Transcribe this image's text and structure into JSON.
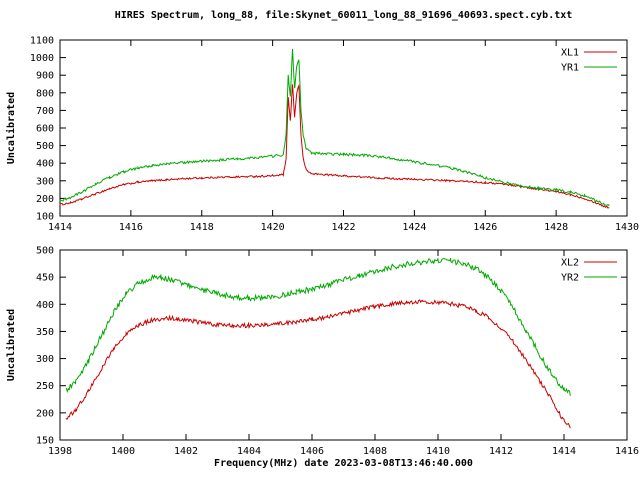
{
  "header": {
    "title": "HIRES Spectrum, long_88, file:Skynet_60011_long_88_91696_40693.spect.cyb.txt"
  },
  "colors": {
    "red": "#cc0000",
    "green": "#00aa00",
    "axis": "#000000"
  },
  "chart_data": [
    {
      "type": "line",
      "ylabel": "Uncalibrated",
      "xlim": [
        1414,
        1430
      ],
      "ylim": [
        100,
        1100
      ],
      "xticks": [
        1414,
        1416,
        1418,
        1420,
        1422,
        1424,
        1426,
        1428,
        1430
      ],
      "yticks": [
        100,
        200,
        300,
        400,
        500,
        600,
        700,
        800,
        900,
        1000,
        1100
      ],
      "grid": false,
      "legend_position": "top-right",
      "series": [
        {
          "name": "XL1",
          "color": "#cc0000",
          "noise": 5,
          "points": [
            [
              1414.0,
              165
            ],
            [
              1414.3,
              175
            ],
            [
              1414.6,
              195
            ],
            [
              1415.0,
              225
            ],
            [
              1415.4,
              255
            ],
            [
              1415.8,
              278
            ],
            [
              1416.2,
              292
            ],
            [
              1416.6,
              300
            ],
            [
              1417.0,
              306
            ],
            [
              1417.5,
              312
            ],
            [
              1418.0,
              316
            ],
            [
              1418.5,
              320
            ],
            [
              1419.0,
              322
            ],
            [
              1419.5,
              325
            ],
            [
              1420.0,
              328
            ],
            [
              1420.3,
              335
            ],
            [
              1420.38,
              420
            ],
            [
              1420.44,
              780
            ],
            [
              1420.5,
              640
            ],
            [
              1420.56,
              850
            ],
            [
              1420.62,
              660
            ],
            [
              1420.68,
              800
            ],
            [
              1420.74,
              840
            ],
            [
              1420.8,
              560
            ],
            [
              1420.86,
              430
            ],
            [
              1420.95,
              360
            ],
            [
              1421.1,
              340
            ],
            [
              1421.5,
              335
            ],
            [
              1422.0,
              328
            ],
            [
              1422.5,
              322
            ],
            [
              1423.0,
              316
            ],
            [
              1423.5,
              312
            ],
            [
              1424.0,
              308
            ],
            [
              1424.5,
              305
            ],
            [
              1425.0,
              300
            ],
            [
              1425.5,
              296
            ],
            [
              1426.0,
              290
            ],
            [
              1426.5,
              282
            ],
            [
              1427.0,
              268
            ],
            [
              1427.5,
              252
            ],
            [
              1428.0,
              238
            ],
            [
              1428.4,
              222
            ],
            [
              1428.8,
              200
            ],
            [
              1429.1,
              178
            ],
            [
              1429.35,
              155
            ],
            [
              1429.5,
              148
            ]
          ]
        },
        {
          "name": "YR1",
          "color": "#00aa00",
          "noise": 7,
          "points": [
            [
              1414.0,
              185
            ],
            [
              1414.3,
              205
            ],
            [
              1414.6,
              235
            ],
            [
              1415.0,
              280
            ],
            [
              1415.4,
              320
            ],
            [
              1415.8,
              352
            ],
            [
              1416.2,
              372
            ],
            [
              1416.6,
              386
            ],
            [
              1417.0,
              396
            ],
            [
              1417.5,
              404
            ],
            [
              1418.0,
              412
            ],
            [
              1418.5,
              418
            ],
            [
              1419.0,
              424
            ],
            [
              1419.5,
              432
            ],
            [
              1420.0,
              440
            ],
            [
              1420.3,
              448
            ],
            [
              1420.38,
              560
            ],
            [
              1420.44,
              900
            ],
            [
              1420.5,
              780
            ],
            [
              1420.56,
              1050
            ],
            [
              1420.62,
              820
            ],
            [
              1420.68,
              950
            ],
            [
              1420.74,
              990
            ],
            [
              1420.8,
              700
            ],
            [
              1420.86,
              560
            ],
            [
              1420.95,
              480
            ],
            [
              1421.1,
              458
            ],
            [
              1421.5,
              452
            ],
            [
              1422.0,
              450
            ],
            [
              1422.5,
              446
            ],
            [
              1423.0,
              438
            ],
            [
              1423.5,
              424
            ],
            [
              1424.0,
              408
            ],
            [
              1424.5,
              392
            ],
            [
              1425.0,
              375
            ],
            [
              1425.5,
              348
            ],
            [
              1426.0,
              318
            ],
            [
              1426.5,
              292
            ],
            [
              1427.0,
              272
            ],
            [
              1427.5,
              258
            ],
            [
              1428.0,
              248
            ],
            [
              1428.4,
              235
            ],
            [
              1428.8,
              215
            ],
            [
              1429.1,
              190
            ],
            [
              1429.35,
              168
            ],
            [
              1429.5,
              160
            ]
          ]
        }
      ]
    },
    {
      "type": "line",
      "xlabel": "Frequency(MHz) date 2023-03-08T13:46:40.000",
      "ylabel": "Uncalibrated",
      "xlim": [
        1398,
        1416
      ],
      "ylim": [
        150,
        500
      ],
      "xticks": [
        1398,
        1400,
        1402,
        1404,
        1406,
        1408,
        1410,
        1412,
        1414,
        1416
      ],
      "yticks": [
        150,
        200,
        250,
        300,
        350,
        400,
        450,
        500
      ],
      "grid": false,
      "legend_position": "top-right",
      "series": [
        {
          "name": "XL2",
          "color": "#cc0000",
          "noise": 4,
          "points": [
            [
              1398.2,
              190
            ],
            [
              1398.5,
              205
            ],
            [
              1398.9,
              240
            ],
            [
              1399.3,
              280
            ],
            [
              1399.7,
              318
            ],
            [
              1400.1,
              345
            ],
            [
              1400.5,
              362
            ],
            [
              1400.9,
              370
            ],
            [
              1401.3,
              374
            ],
            [
              1401.7,
              374
            ],
            [
              1402.1,
              370
            ],
            [
              1402.5,
              366
            ],
            [
              1403.0,
              362
            ],
            [
              1403.5,
              360
            ],
            [
              1404.0,
              361
            ],
            [
              1404.5,
              363
            ],
            [
              1405.0,
              365
            ],
            [
              1405.5,
              368
            ],
            [
              1406.0,
              372
            ],
            [
              1406.5,
              377
            ],
            [
              1407.0,
              383
            ],
            [
              1407.5,
              390
            ],
            [
              1408.0,
              396
            ],
            [
              1408.5,
              400
            ],
            [
              1409.0,
              403
            ],
            [
              1409.5,
              405
            ],
            [
              1410.0,
              404
            ],
            [
              1410.4,
              401
            ],
            [
              1410.8,
              396
            ],
            [
              1411.2,
              388
            ],
            [
              1411.6,
              376
            ],
            [
              1412.0,
              356
            ],
            [
              1412.4,
              330
            ],
            [
              1412.8,
              298
            ],
            [
              1413.2,
              262
            ],
            [
              1413.6,
              225
            ],
            [
              1414.0,
              185
            ],
            [
              1414.2,
              175
            ]
          ]
        },
        {
          "name": "YR2",
          "color": "#00aa00",
          "noise": 5,
          "points": [
            [
              1398.2,
              242
            ],
            [
              1398.5,
              258
            ],
            [
              1398.9,
              295
            ],
            [
              1399.3,
              340
            ],
            [
              1399.7,
              385
            ],
            [
              1400.1,
              420
            ],
            [
              1400.5,
              440
            ],
            [
              1400.9,
              448
            ],
            [
              1401.2,
              450
            ],
            [
              1401.6,
              444
            ],
            [
              1402.0,
              436
            ],
            [
              1402.5,
              427
            ],
            [
              1403.0,
              420
            ],
            [
              1403.5,
              414
            ],
            [
              1404.0,
              411
            ],
            [
              1404.5,
              412
            ],
            [
              1405.0,
              416
            ],
            [
              1405.5,
              422
            ],
            [
              1406.0,
              428
            ],
            [
              1406.5,
              436
            ],
            [
              1407.0,
              445
            ],
            [
              1407.5,
              453
            ],
            [
              1408.0,
              460
            ],
            [
              1408.5,
              468
            ],
            [
              1409.0,
              474
            ],
            [
              1409.5,
              478
            ],
            [
              1410.0,
              481
            ],
            [
              1410.4,
              480
            ],
            [
              1410.8,
              475
            ],
            [
              1411.2,
              466
            ],
            [
              1411.6,
              450
            ],
            [
              1412.0,
              425
            ],
            [
              1412.4,
              392
            ],
            [
              1412.8,
              352
            ],
            [
              1413.2,
              310
            ],
            [
              1413.6,
              272
            ],
            [
              1414.0,
              242
            ],
            [
              1414.2,
              235
            ]
          ]
        }
      ]
    }
  ]
}
